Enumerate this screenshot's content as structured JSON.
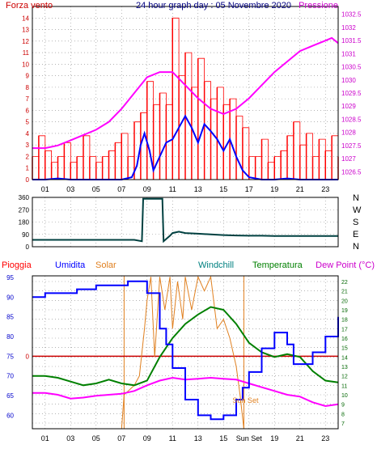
{
  "chart_data": [
    {
      "type": "line",
      "title": "24 hour graph day : 05 Novembre 2020",
      "left_axis_label": "Forza vento",
      "right_axis_label": "Pressione",
      "left_ylim": [
        0,
        15
      ],
      "left_ticks": [
        "0",
        "1",
        "2",
        "3",
        "4",
        "5",
        "6",
        "7",
        "8",
        "9",
        "10",
        "11",
        "12",
        "13",
        "14"
      ],
      "right_ylim": [
        1026.2,
        1032.8
      ],
      "right_ticks": [
        "1026.5",
        "1027",
        "1027.5",
        "1028",
        "1028.5",
        "1029",
        "1029.5",
        "1030",
        "1030.5",
        "1031",
        "1031.5",
        "1032",
        "1032.5"
      ],
      "x_range": [
        0,
        24
      ],
      "x_ticks": [
        "01",
        "03",
        "05",
        "07",
        "09",
        "11",
        "13",
        "15",
        "17",
        "19",
        "21",
        "23"
      ],
      "colors": {
        "gust": "#ff0000",
        "wind": "#0000ff",
        "pressure": "#ff00ff"
      },
      "series": [
        {
          "key": "wind",
          "x": [
            0,
            1,
            2,
            3,
            4,
            5,
            6,
            7,
            7.8,
            8.2,
            8.5,
            8.8,
            9.2,
            9.5,
            10,
            10.5,
            11,
            11.5,
            12,
            12.5,
            13,
            13.5,
            14,
            14.5,
            15,
            15.5,
            16,
            16.5,
            17,
            18,
            19,
            20,
            21,
            22,
            23,
            24
          ],
          "values": [
            0,
            0,
            0.1,
            0,
            0,
            0,
            0,
            0,
            0.2,
            1.2,
            3,
            4,
            2.5,
            0.8,
            2,
            3.2,
            3.5,
            4.5,
            5.5,
            4.5,
            3.2,
            4.8,
            4.2,
            3.5,
            2.5,
            3.5,
            2,
            0.8,
            0.2,
            0,
            0,
            0.1,
            0,
            0,
            0,
            0
          ]
        },
        {
          "key": "pressure",
          "x": [
            0,
            1,
            2,
            3,
            4,
            5,
            6,
            7,
            8,
            8.5,
            9,
            10,
            11,
            12,
            13,
            14,
            15,
            16,
            17,
            18,
            19,
            20,
            21,
            22,
            23,
            23.5,
            24
          ],
          "values": [
            1027.4,
            1027.4,
            1027.5,
            1027.7,
            1027.9,
            1028.1,
            1028.4,
            1028.9,
            1029.5,
            1029.8,
            1030.1,
            1030.3,
            1030.3,
            1029.8,
            1029.3,
            1028.9,
            1028.7,
            1028.9,
            1029.3,
            1029.8,
            1030.3,
            1030.7,
            1031.1,
            1031.3,
            1031.5,
            1031.6,
            1031.4
          ]
        },
        {
          "key": "gust",
          "x": [
            0,
            0.5,
            1,
            1.5,
            2,
            2.5,
            3,
            3.5,
            4,
            4.5,
            5,
            5.5,
            6,
            6.5,
            7,
            7.5,
            8,
            8.5,
            9,
            9.5,
            10,
            10.5,
            11,
            11.5,
            12,
            12.5,
            13,
            13.5,
            14,
            14.5,
            15,
            15.5,
            16,
            16.5,
            17,
            17.5,
            18,
            18.5,
            19,
            19.5,
            20,
            20.5,
            21,
            21.5,
            22,
            22.5,
            23,
            23.5,
            24
          ],
          "values": [
            2,
            3.8,
            2.5,
            1.5,
            2,
            3.2,
            1.5,
            2,
            3.8,
            2,
            1.5,
            2,
            2.5,
            3.2,
            4,
            2,
            5,
            5.8,
            8.5,
            6.5,
            7.5,
            6.5,
            14,
            9,
            11,
            8,
            10.5,
            8.5,
            7,
            8,
            6.5,
            7,
            5.5,
            4.5,
            2,
            2,
            3.5,
            1.5,
            2,
            2.5,
            3.8,
            5,
            3,
            4,
            2,
            3.5,
            2.5,
            3.8,
            2
          ]
        }
      ]
    },
    {
      "type": "line",
      "title": "",
      "y_range": [
        0,
        360
      ],
      "y_ticks": [
        "0",
        "90",
        "180",
        "270",
        "360"
      ],
      "direction_labels": [
        "N",
        "W",
        "S",
        "E",
        "N"
      ],
      "color": "#004040",
      "series": [
        {
          "key": "wind_direction",
          "x": [
            0,
            1,
            2,
            3,
            4,
            5,
            6,
            7,
            8,
            8.6,
            8.7,
            10.2,
            10.3,
            10.8,
            11,
            11.5,
            12,
            13,
            14,
            15,
            16,
            17,
            18,
            19,
            20,
            21,
            22,
            23,
            24
          ],
          "values": [
            50,
            50,
            50,
            50,
            50,
            50,
            50,
            50,
            50,
            40,
            350,
            350,
            40,
            80,
            100,
            110,
            100,
            95,
            90,
            85,
            82,
            80,
            80,
            78,
            78,
            78,
            78,
            78,
            78
          ]
        }
      ]
    },
    {
      "type": "line",
      "title": "",
      "labels": {
        "pioggia": "Pioggia",
        "umidita": "Umidita",
        "solar": "Solar",
        "windchill": "Windchill",
        "temperatura": "Temperatura",
        "dewpoint": "Dew Point (°C)"
      },
      "colors": {
        "pioggia": "#ff0000",
        "umidita": "#0000ff",
        "solar": "#e08020",
        "windchill": "#008080",
        "temperatura": "#008000",
        "dewpoint": "#ff00ff"
      },
      "left_ylim": [
        56.6,
        95.4
      ],
      "left_ticks": [
        "60",
        "65",
        "70",
        "75",
        "80",
        "85",
        "90",
        "95"
      ],
      "left_zero_label": "0",
      "right_ylim": [
        6.4,
        22.6
      ],
      "right_ticks": [
        "7",
        "8",
        "9",
        "10",
        "11",
        "12",
        "13",
        "14",
        "15",
        "16",
        "17",
        "18",
        "19",
        "20",
        "21",
        "22"
      ],
      "x_range": [
        0,
        24
      ],
      "x_ticks": [
        "01",
        "03",
        "05",
        "07",
        "09",
        "11",
        "13",
        "15",
        "Sun Set",
        "19",
        "21",
        "23"
      ],
      "sunrise_x": 7.2,
      "sunset_x": 16.6,
      "annotation": "Sun Set",
      "series": [
        {
          "key": "umidita",
          "axis": "left",
          "x": [
            0,
            1,
            2,
            3,
            3.5,
            4,
            5,
            6,
            7,
            7.5,
            8,
            8.5,
            9,
            10,
            10.5,
            11,
            12,
            13,
            14,
            15,
            16,
            16.5,
            17,
            18,
            19,
            20,
            20.5,
            21,
            22,
            23,
            24
          ],
          "values": [
            90,
            91,
            91,
            91,
            92,
            92,
            93,
            93,
            93,
            94,
            94,
            94,
            91,
            82,
            78,
            72,
            64,
            60,
            59,
            60,
            64,
            67,
            71,
            77,
            81,
            78,
            73,
            73,
            76,
            80,
            85
          ]
        },
        {
          "key": "temperatura",
          "axis": "right",
          "x": [
            0,
            1,
            2,
            3,
            4,
            5,
            6,
            7,
            8,
            9,
            10,
            11,
            12,
            13,
            14,
            15,
            16,
            17,
            18,
            19,
            20,
            21,
            22,
            23,
            24
          ],
          "values": [
            12,
            12,
            11.8,
            11.4,
            11,
            11.2,
            11.6,
            11.2,
            11,
            11.5,
            14,
            16,
            17.5,
            18.5,
            19.3,
            19,
            17.5,
            15.5,
            14.5,
            14,
            14.3,
            14,
            12.5,
            11.5,
            11.3
          ]
        },
        {
          "key": "dewpoint",
          "axis": "right",
          "x": [
            0,
            1,
            2,
            3,
            4,
            5,
            6,
            7,
            8,
            9,
            10,
            11,
            12,
            13,
            14,
            15,
            16,
            17,
            18,
            19,
            20,
            21,
            22,
            23,
            24
          ],
          "values": [
            10.2,
            10.2,
            10,
            9.6,
            9.7,
            9.9,
            10,
            10.1,
            10.4,
            11,
            11.5,
            11.8,
            11.6,
            11.7,
            11.8,
            11.7,
            11.6,
            11.2,
            10.8,
            10.4,
            10,
            9.8,
            9.2,
            8.8,
            9
          ]
        },
        {
          "key": "solar",
          "axis": "right",
          "x": [
            0,
            1,
            2,
            3,
            4,
            5,
            6,
            7,
            7.2,
            7.6,
            8,
            8.4,
            8.8,
            9,
            9.3,
            9.6,
            10,
            10.4,
            10.8,
            11,
            11.4,
            11.8,
            12,
            12.5,
            13,
            13.5,
            14,
            14.5,
            15,
            15.5,
            16,
            16.3,
            16.6,
            17,
            18,
            24
          ],
          "values": [
            6.4,
            6.4,
            6.4,
            6.4,
            6.4,
            6.4,
            6.4,
            6.4,
            10,
            10.5,
            11,
            12,
            17,
            20,
            22.5,
            14,
            22.5,
            19,
            22.5,
            17,
            22,
            18,
            22.5,
            19,
            22.5,
            21,
            22.5,
            17,
            18,
            16,
            13,
            10,
            6.4,
            6.4,
            6.4,
            6.4
          ]
        }
      ]
    }
  ]
}
